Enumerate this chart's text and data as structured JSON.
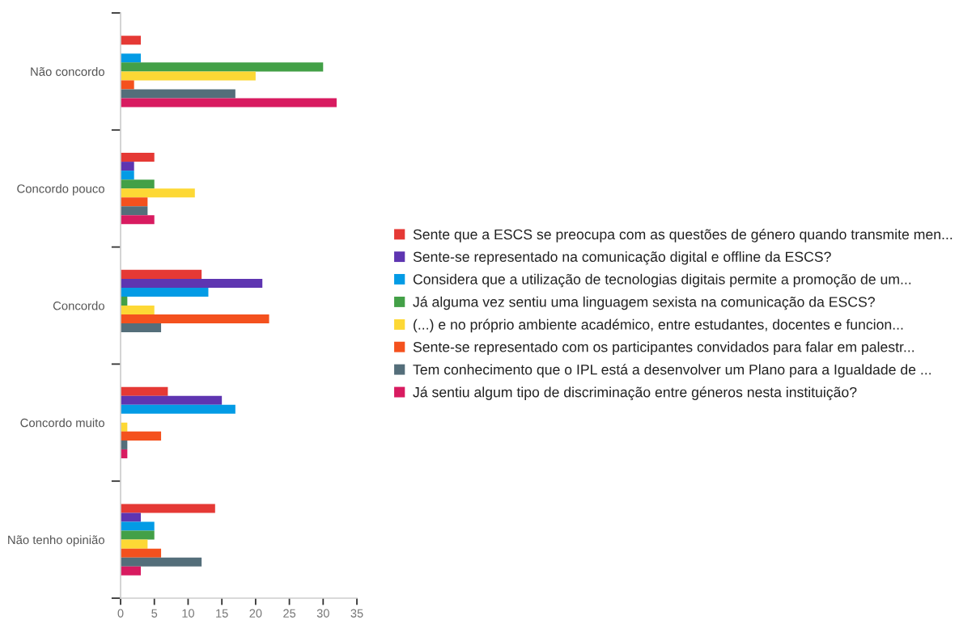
{
  "chart_data": {
    "type": "bar",
    "orientation": "horizontal",
    "categories": [
      "Não concordo",
      "Concordo pouco",
      "Concordo",
      "Concordo muito",
      "Não tenho opinião"
    ],
    "series": [
      {
        "name": "Sente que a ESCS se preocupa com as questões de género quando transmite men...",
        "color": "#e53935",
        "values": [
          3,
          5,
          12,
          7,
          14
        ]
      },
      {
        "name": "Sente-se representado na comunicação digital e offline da ESCS?",
        "color": "#5e35b1",
        "values": [
          0,
          2,
          21,
          15,
          3
        ]
      },
      {
        "name": "Considera que a utilização de tecnologias digitais permite a promoção de um...",
        "color": "#039be5",
        "values": [
          3,
          2,
          13,
          17,
          5
        ]
      },
      {
        "name": "Já alguma vez sentiu uma linguagem sexista na comunicação da ESCS?",
        "color": "#43a047",
        "values": [
          30,
          5,
          1,
          0,
          5
        ]
      },
      {
        "name": "(...) e no próprio ambiente académico, entre estudantes, docentes e funcion...",
        "color": "#fdd835",
        "values": [
          20,
          11,
          5,
          1,
          4
        ]
      },
      {
        "name": "Sente-se representado com os participantes convidados para falar em palestr...",
        "color": "#f4511e",
        "values": [
          2,
          4,
          22,
          6,
          6
        ]
      },
      {
        "name": "Tem conhecimento que o IPL está a desenvolver um Plano para a Igualdade de ...",
        "color": "#546e7a",
        "values": [
          17,
          4,
          6,
          1,
          12
        ]
      },
      {
        "name": "Já sentiu algum tipo de discriminação entre géneros nesta instituição?",
        "color": "#d81b60",
        "values": [
          32,
          5,
          0,
          1,
          3
        ]
      }
    ],
    "xlim": [
      0,
      35
    ],
    "xticks": [
      0,
      5,
      10,
      15,
      20,
      25,
      30,
      35
    ],
    "legend": "right",
    "grid": false
  }
}
